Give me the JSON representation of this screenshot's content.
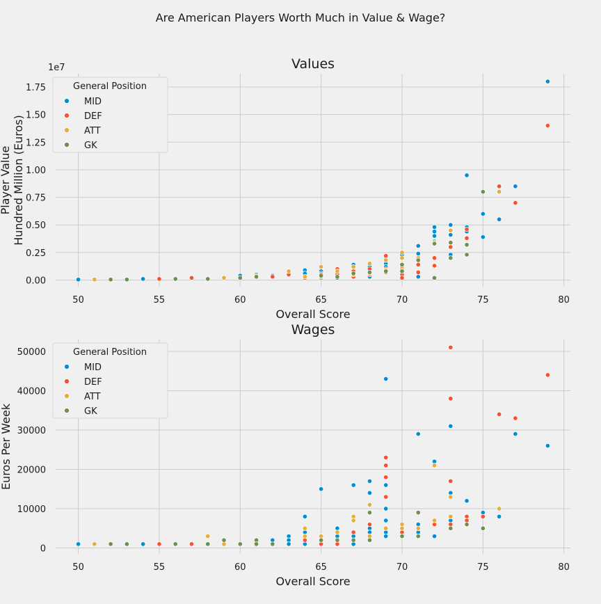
{
  "figure": {
    "suptitle": "Are American Players Worth Much in Value & Wage?"
  },
  "colors": {
    "MID": "#008fd5",
    "DEF": "#fc4f30",
    "ATT": "#e5ae38",
    "GK": "#6d904f"
  },
  "chart_data": [
    {
      "type": "scatter",
      "title": "Values",
      "xlabel": "Overall Score",
      "ylabel": "Player Value\nHundred Million (Euros)",
      "offset_text": "1e7",
      "xlim": [
        48.6,
        80.4
      ],
      "ylim": [
        -0.06,
        1.87
      ],
      "xticks": [
        50,
        55,
        60,
        65,
        70,
        75,
        80
      ],
      "xtick_labels": [
        "50",
        "55",
        "60",
        "65",
        "70",
        "75",
        "80"
      ],
      "yticks": [
        0,
        0.25,
        0.5,
        0.75,
        1.0,
        1.25,
        1.5,
        1.75
      ],
      "ytick_labels": [
        "0.00",
        "0.25",
        "0.50",
        "0.75",
        "1.00",
        "1.25",
        "1.50",
        "1.75"
      ],
      "grid": true,
      "legend": {
        "title": "General Position",
        "placement": "top-left",
        "entries": [
          "MID",
          "DEF",
          "ATT",
          "GK"
        ]
      },
      "series": [
        {
          "name": "MID",
          "points": [
            [
              50,
              0.005
            ],
            [
              54,
              0.01
            ],
            [
              56,
              0.01
            ],
            [
              58,
              0.02
            ],
            [
              60,
              0.04
            ],
            [
              61,
              0.05
            ],
            [
              62,
              0.04
            ],
            [
              63,
              0.07
            ],
            [
              64,
              0.09
            ],
            [
              64,
              0.06
            ],
            [
              65,
              0.08
            ],
            [
              65,
              0.06
            ],
            [
              66,
              0.1
            ],
            [
              66,
              0.02
            ],
            [
              67,
              0.14
            ],
            [
              67,
              0.08
            ],
            [
              68,
              0.12
            ],
            [
              68,
              0.09
            ],
            [
              68,
              0.03
            ],
            [
              69,
              0.21
            ],
            [
              69,
              0.15
            ],
            [
              69,
              0.12
            ],
            [
              70,
              0.23
            ],
            [
              70,
              0.14
            ],
            [
              71,
              0.31
            ],
            [
              71,
              0.24
            ],
            [
              71,
              0.03
            ],
            [
              72,
              0.48
            ],
            [
              72,
              0.44
            ],
            [
              72,
              0.4
            ],
            [
              72,
              0.35
            ],
            [
              73,
              0.5
            ],
            [
              73,
              0.41
            ],
            [
              73,
              0.23
            ],
            [
              74,
              0.95
            ],
            [
              74,
              0.48
            ],
            [
              74,
              0.44
            ],
            [
              75,
              0.6
            ],
            [
              75,
              0.39
            ],
            [
              76,
              0.55
            ],
            [
              77,
              0.85
            ],
            [
              79,
              1.8
            ]
          ]
        },
        {
          "name": "DEF",
          "points": [
            [
              55,
              0.01
            ],
            [
              57,
              0.02
            ],
            [
              58,
              0.015
            ],
            [
              62,
              0.03
            ],
            [
              63,
              0.05
            ],
            [
              64,
              0.02
            ],
            [
              65,
              0.05
            ],
            [
              65,
              0.02
            ],
            [
              66,
              0.1
            ],
            [
              66,
              0.05
            ],
            [
              67,
              0.08
            ],
            [
              67,
              0.03
            ],
            [
              68,
              0.1
            ],
            [
              68,
              0.05
            ],
            [
              69,
              0.22
            ],
            [
              69,
              0.1
            ],
            [
              69,
              0.07
            ],
            [
              70,
              0.1
            ],
            [
              70,
              0.05
            ],
            [
              70,
              0.02
            ],
            [
              71,
              0.14
            ],
            [
              71,
              0.07
            ],
            [
              72,
              0.2
            ],
            [
              72,
              0.13
            ],
            [
              73,
              0.45
            ],
            [
              73,
              0.3
            ],
            [
              74,
              0.46
            ],
            [
              74,
              0.38
            ],
            [
              76,
              0.85
            ],
            [
              77,
              0.7
            ],
            [
              79,
              1.4
            ]
          ]
        },
        {
          "name": "ATT",
          "points": [
            [
              51,
              0.005
            ],
            [
              59,
              0.02
            ],
            [
              61,
              0.04
            ],
            [
              63,
              0.08
            ],
            [
              64,
              0.03
            ],
            [
              65,
              0.12
            ],
            [
              65,
              0.03
            ],
            [
              66,
              0.08
            ],
            [
              67,
              0.12
            ],
            [
              67,
              0.05
            ],
            [
              68,
              0.15
            ],
            [
              68,
              0.06
            ],
            [
              69,
              0.18
            ],
            [
              69,
              0.09
            ],
            [
              70,
              0.25
            ],
            [
              70,
              0.2
            ],
            [
              70,
              0.12
            ],
            [
              71,
              0.2
            ],
            [
              72,
              0.34
            ],
            [
              73,
              0.45
            ],
            [
              76,
              0.8
            ]
          ]
        },
        {
          "name": "GK",
          "points": [
            [
              52,
              0.005
            ],
            [
              53,
              0.005
            ],
            [
              56,
              0.01
            ],
            [
              58,
              0.01
            ],
            [
              60,
              0.02
            ],
            [
              61,
              0.03
            ],
            [
              65,
              0.04
            ],
            [
              66,
              0.03
            ],
            [
              67,
              0.06
            ],
            [
              68,
              0.07
            ],
            [
              69,
              0.08
            ],
            [
              70,
              0.14
            ],
            [
              70,
              0.08
            ],
            [
              71,
              0.18
            ],
            [
              72,
              0.02
            ],
            [
              72,
              0.33
            ],
            [
              73,
              0.34
            ],
            [
              73,
              0.2
            ],
            [
              74,
              0.32
            ],
            [
              74,
              0.23
            ],
            [
              75,
              0.8
            ]
          ]
        }
      ]
    },
    {
      "type": "scatter",
      "title": "Wages",
      "xlabel": "Overall Score",
      "ylabel": "Euros Per Week",
      "xlim": [
        48.6,
        80.4
      ],
      "ylim": [
        -1500,
        53000
      ],
      "xticks": [
        50,
        55,
        60,
        65,
        70,
        75,
        80
      ],
      "xtick_labels": [
        "50",
        "55",
        "60",
        "65",
        "70",
        "75",
        "80"
      ],
      "yticks": [
        0,
        10000,
        20000,
        30000,
        40000,
        50000
      ],
      "ytick_labels": [
        "0",
        "10000",
        "20000",
        "30000",
        "40000",
        "50000"
      ],
      "grid": true,
      "legend": {
        "title": "General Position",
        "placement": "top-left",
        "entries": [
          "MID",
          "DEF",
          "ATT",
          "GK"
        ]
      },
      "series": [
        {
          "name": "MID",
          "points": [
            [
              50,
              1000
            ],
            [
              54,
              1000
            ],
            [
              62,
              2000
            ],
            [
              63,
              3000
            ],
            [
              63,
              2000
            ],
            [
              63,
              1000
            ],
            [
              64,
              8000
            ],
            [
              64,
              4000
            ],
            [
              64,
              2000
            ],
            [
              64,
              1000
            ],
            [
              65,
              15000
            ],
            [
              65,
              2000
            ],
            [
              66,
              5000
            ],
            [
              66,
              3000
            ],
            [
              67,
              16000
            ],
            [
              67,
              3000
            ],
            [
              67,
              1000
            ],
            [
              68,
              17000
            ],
            [
              68,
              14000
            ],
            [
              68,
              5000
            ],
            [
              68,
              4000
            ],
            [
              69,
              43000
            ],
            [
              69,
              16000
            ],
            [
              69,
              10000
            ],
            [
              69,
              7000
            ],
            [
              69,
              4000
            ],
            [
              69,
              3000
            ],
            [
              70,
              3000
            ],
            [
              71,
              29000
            ],
            [
              71,
              6000
            ],
            [
              71,
              4000
            ],
            [
              72,
              22000
            ],
            [
              72,
              6000
            ],
            [
              72,
              3000
            ],
            [
              73,
              31000
            ],
            [
              73,
              14000
            ],
            [
              73,
              7000
            ],
            [
              74,
              12000
            ],
            [
              75,
              9000
            ],
            [
              76,
              8000
            ],
            [
              77,
              29000
            ],
            [
              79,
              26000
            ]
          ]
        },
        {
          "name": "DEF",
          "points": [
            [
              55,
              1000
            ],
            [
              57,
              1000
            ],
            [
              64,
              2000
            ],
            [
              65,
              1000
            ],
            [
              66,
              2000
            ],
            [
              66,
              1000
            ],
            [
              67,
              4000
            ],
            [
              68,
              6000
            ],
            [
              69,
              23000
            ],
            [
              69,
              21000
            ],
            [
              69,
              18000
            ],
            [
              69,
              13000
            ],
            [
              70,
              4000
            ],
            [
              70,
              3000
            ],
            [
              71,
              5000
            ],
            [
              72,
              6000
            ],
            [
              73,
              51000
            ],
            [
              73,
              38000
            ],
            [
              73,
              17000
            ],
            [
              73,
              6000
            ],
            [
              74,
              8000
            ],
            [
              74,
              7000
            ],
            [
              75,
              8000
            ],
            [
              76,
              34000
            ],
            [
              77,
              33000
            ],
            [
              79,
              44000
            ]
          ]
        },
        {
          "name": "ATT",
          "points": [
            [
              51,
              1000
            ],
            [
              58,
              3000
            ],
            [
              59,
              1000
            ],
            [
              64,
              5000
            ],
            [
              64,
              3000
            ],
            [
              65,
              3000
            ],
            [
              66,
              4000
            ],
            [
              67,
              8000
            ],
            [
              67,
              7000
            ],
            [
              68,
              11000
            ],
            [
              68,
              3000
            ],
            [
              69,
              5000
            ],
            [
              70,
              6000
            ],
            [
              70,
              5000
            ],
            [
              71,
              5000
            ],
            [
              72,
              21000
            ],
            [
              72,
              7000
            ],
            [
              73,
              13000
            ],
            [
              73,
              8000
            ],
            [
              76,
              10000
            ]
          ]
        },
        {
          "name": "GK",
          "points": [
            [
              52,
              1000
            ],
            [
              53,
              1000
            ],
            [
              56,
              1000
            ],
            [
              58,
              1000
            ],
            [
              59,
              2000
            ],
            [
              60,
              1000
            ],
            [
              61,
              2000
            ],
            [
              61,
              1000
            ],
            [
              62,
              1000
            ],
            [
              65,
              2000
            ],
            [
              66,
              2000
            ],
            [
              67,
              2000
            ],
            [
              68,
              9000
            ],
            [
              68,
              2000
            ],
            [
              70,
              3000
            ],
            [
              71,
              9000
            ],
            [
              71,
              3000
            ],
            [
              73,
              5000
            ],
            [
              74,
              6000
            ],
            [
              75,
              5000
            ]
          ]
        }
      ]
    }
  ]
}
